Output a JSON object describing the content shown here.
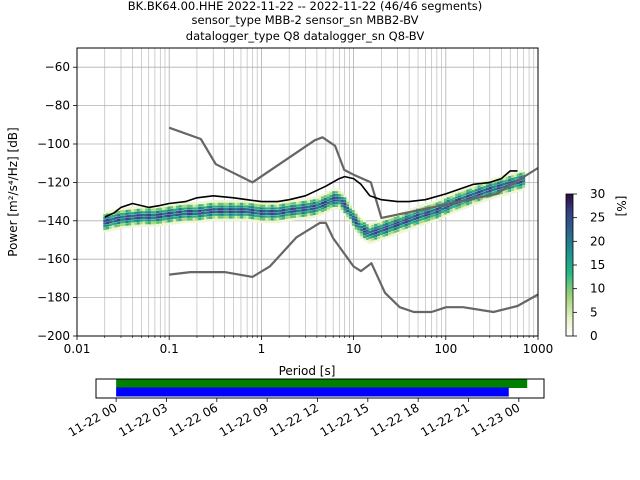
{
  "title_lines": [
    "BK.BK64.00.HHE   2022-11-22 -- 2022-11-22  (46/46 segments)",
    "sensor_type MBB-2 sensor_sn MBB2-BV",
    "datalogger_type Q8 datalogger_sn Q8-BV"
  ],
  "chart_data": [
    {
      "type": "heatmap",
      "xlabel": "Period [s]",
      "ylabel": "Power [m²/s⁴/Hz] [dB]",
      "xscale": "log",
      "xlim": [
        0.01,
        1000
      ],
      "ylim": [
        -200,
        -50
      ],
      "x_ticks": [
        "0.01",
        "0.1",
        "1",
        "10",
        "100",
        "1000"
      ],
      "x_tick_values": [
        0.01,
        0.1,
        1,
        10,
        100,
        1000
      ],
      "y_ticks": [
        "−60",
        "−80",
        "−100",
        "−120",
        "−140",
        "−160",
        "−180",
        "−200"
      ],
      "y_tick_values": [
        -60,
        -80,
        -100,
        -120,
        -140,
        -160,
        -180,
        -200
      ],
      "grid": true,
      "colorbar": {
        "label": "[%]",
        "ticks": [
          "0",
          "5",
          "10",
          "15",
          "20",
          "25",
          "30"
        ],
        "tick_values": [
          0,
          5,
          10,
          15,
          20,
          25,
          30
        ],
        "range": [
          0,
          30
        ]
      },
      "mode_line": {
        "color": "#000000",
        "x": [
          0.02,
          0.025,
          0.03,
          0.04,
          0.06,
          0.08,
          0.1,
          0.15,
          0.2,
          0.3,
          0.5,
          0.7,
          1.0,
          1.5,
          2.0,
          3.0,
          5.0,
          7.0,
          8.0,
          10.0,
          12.0,
          15.0,
          20.0,
          30.0,
          40.0,
          60.0,
          100.0,
          150.0,
          200.0,
          300.0,
          400.0,
          500.0,
          600.0
        ],
        "y": [
          -138,
          -136,
          -133,
          -131,
          -133,
          -132,
          -131,
          -130,
          -128,
          -127,
          -128,
          -129,
          -130,
          -130,
          -129,
          -127,
          -122,
          -118,
          -117,
          -118,
          -121,
          -127,
          -129,
          -130,
          -130,
          -129,
          -126,
          -123,
          -121,
          -120,
          -118,
          -114,
          -114
        ]
      },
      "nhnm": {
        "color": "#666666",
        "x": [
          0.1,
          0.22,
          0.32,
          0.8,
          3.8,
          4.6,
          6.3,
          7.9,
          10.0,
          15.4,
          20.0,
          354.8,
          1000.0
        ],
        "y": [
          -91.5,
          -97.4,
          -110.5,
          -120.0,
          -98.0,
          -96.5,
          -101.0,
          -113.5,
          -116.0,
          -120.0,
          -138.5,
          -126.0,
          -112.5
        ]
      },
      "nlnm": {
        "color": "#666666",
        "x": [
          0.1,
          0.17,
          0.4,
          0.8,
          1.24,
          2.4,
          4.3,
          5.0,
          6.0,
          10.0,
          12.0,
          15.6,
          21.9,
          31.6,
          45.0,
          70.0,
          101.0,
          154.0,
          328.0,
          600.0,
          1000.0
        ],
        "y": [
          -168.0,
          -166.7,
          -166.7,
          -169.2,
          -163.7,
          -148.6,
          -141.1,
          -141.1,
          -149.0,
          -163.8,
          -166.2,
          -162.1,
          -177.5,
          -185.0,
          -187.5,
          -187.5,
          -185.0,
          -185.0,
          -187.5,
          -184.4,
          -178.4
        ]
      },
      "series": [
        {
          "name": "",
          "x": [
            0.02,
            0.03,
            0.05,
            0.07,
            0.1,
            0.15,
            0.2,
            0.3,
            0.5,
            0.7,
            1.0,
            1.5,
            2.0,
            3.0,
            4.0,
            5.0,
            6.0,
            7.0,
            8.0,
            10.0,
            12.0,
            15.0,
            20.0,
            30.0,
            50.0,
            80.0,
            120.0,
            200.0,
            300.0,
            500.0,
            700.0
          ],
          "y": [
            -140,
            -138,
            -137,
            -137,
            -136,
            -135,
            -135,
            -134,
            -134,
            -134,
            -135,
            -135,
            -134,
            -133,
            -132,
            -130,
            -128,
            -128,
            -131,
            -138,
            -143,
            -146,
            -144,
            -141,
            -137,
            -134,
            -130,
            -126,
            -123,
            -120,
            -118
          ]
        }
      ]
    },
    {
      "type": "timeline",
      "x_ticks": [
        "11-22 00",
        "11-22 03",
        "11-22 06",
        "11-22 09",
        "11-22 12",
        "11-22 15",
        "11-22 18",
        "11-22 21",
        "11-23 00"
      ],
      "x_tick_values": [
        0,
        3,
        6,
        9,
        12,
        15,
        18,
        21,
        24
      ],
      "xlim": [
        -1.2,
        25.5
      ],
      "bars": [
        {
          "name": "",
          "color": "#008000",
          "start": 0,
          "end": 24.5
        },
        {
          "name": "",
          "color": "#0000ff",
          "start": 0,
          "end": 23.4
        }
      ]
    }
  ]
}
